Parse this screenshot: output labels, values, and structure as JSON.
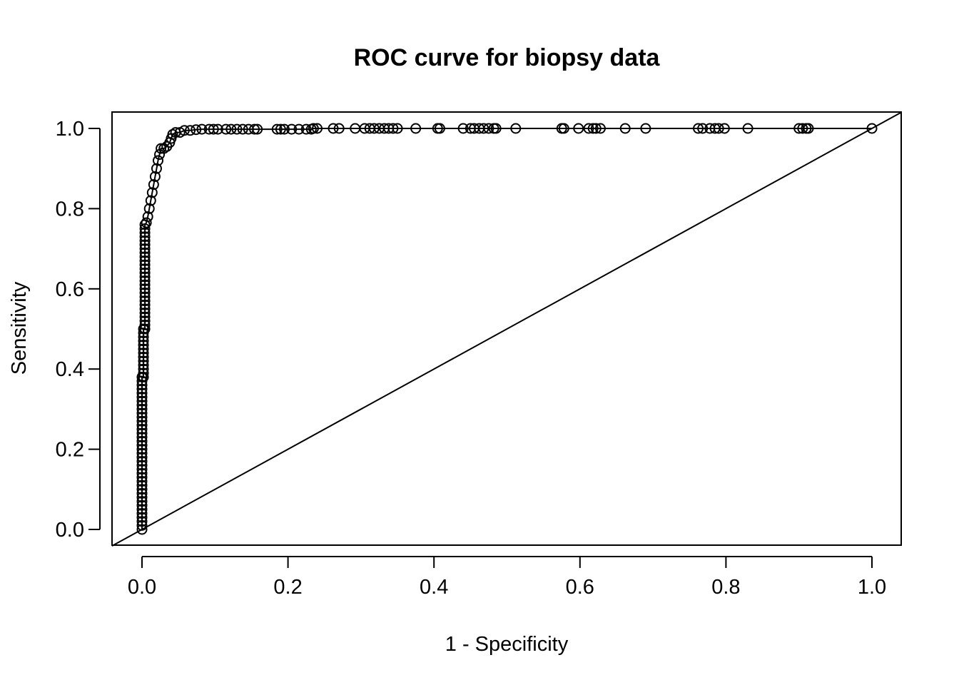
{
  "chart_data": {
    "type": "line",
    "title": "ROC curve for biopsy data",
    "xlabel": "1 - Specificity",
    "ylabel": "Sensitivity",
    "xlim": [
      0,
      1
    ],
    "ylim": [
      0,
      1
    ],
    "x_ticks": [
      0.0,
      0.2,
      0.4,
      0.6,
      0.8,
      1.0
    ],
    "y_ticks": [
      0.0,
      0.2,
      0.4,
      0.6,
      0.8,
      1.0
    ],
    "x_tick_labels": [
      "0.0",
      "0.2",
      "0.4",
      "0.6",
      "0.8",
      "1.0"
    ],
    "y_tick_labels": [
      "0.0",
      "0.2",
      "0.4",
      "0.6",
      "0.8",
      "1.0"
    ],
    "grid": false,
    "legend": "none",
    "reference_line": {
      "x": [
        0,
        1
      ],
      "y": [
        0,
        1
      ]
    },
    "series": [
      {
        "points": [
          [
            0.0,
            0.0
          ],
          [
            0.0,
            0.01
          ],
          [
            0.0,
            0.02
          ],
          [
            0.0,
            0.03
          ],
          [
            0.0,
            0.04
          ],
          [
            0.0,
            0.05
          ],
          [
            0.0,
            0.06
          ],
          [
            0.0,
            0.07
          ],
          [
            0.0,
            0.08
          ],
          [
            0.0,
            0.09
          ],
          [
            0.0,
            0.1
          ],
          [
            0.0,
            0.11
          ],
          [
            0.0,
            0.12
          ],
          [
            0.0,
            0.13
          ],
          [
            0.0,
            0.14
          ],
          [
            0.0,
            0.15
          ],
          [
            0.0,
            0.16
          ],
          [
            0.0,
            0.17
          ],
          [
            0.0,
            0.18
          ],
          [
            0.0,
            0.19
          ],
          [
            0.0,
            0.2
          ],
          [
            0.0,
            0.21
          ],
          [
            0.0,
            0.22
          ],
          [
            0.0,
            0.23
          ],
          [
            0.0,
            0.24
          ],
          [
            0.0,
            0.25
          ],
          [
            0.0,
            0.26
          ],
          [
            0.0,
            0.27
          ],
          [
            0.0,
            0.28
          ],
          [
            0.0,
            0.29
          ],
          [
            0.0,
            0.3
          ],
          [
            0.0,
            0.31
          ],
          [
            0.0,
            0.32
          ],
          [
            0.0,
            0.33
          ],
          [
            0.0,
            0.34
          ],
          [
            0.0,
            0.35
          ],
          [
            0.0,
            0.36
          ],
          [
            0.0,
            0.37
          ],
          [
            0.0,
            0.38
          ],
          [
            0.002,
            0.38
          ],
          [
            0.002,
            0.39
          ],
          [
            0.002,
            0.4
          ],
          [
            0.002,
            0.41
          ],
          [
            0.002,
            0.42
          ],
          [
            0.002,
            0.43
          ],
          [
            0.002,
            0.44
          ],
          [
            0.002,
            0.45
          ],
          [
            0.002,
            0.46
          ],
          [
            0.002,
            0.47
          ],
          [
            0.002,
            0.48
          ],
          [
            0.002,
            0.49
          ],
          [
            0.002,
            0.5
          ],
          [
            0.004,
            0.5
          ],
          [
            0.004,
            0.51
          ],
          [
            0.004,
            0.52
          ],
          [
            0.004,
            0.53
          ],
          [
            0.004,
            0.54
          ],
          [
            0.004,
            0.55
          ],
          [
            0.004,
            0.56
          ],
          [
            0.004,
            0.57
          ],
          [
            0.004,
            0.58
          ],
          [
            0.004,
            0.59
          ],
          [
            0.004,
            0.6
          ],
          [
            0.004,
            0.61
          ],
          [
            0.004,
            0.62
          ],
          [
            0.004,
            0.63
          ],
          [
            0.004,
            0.64
          ],
          [
            0.004,
            0.65
          ],
          [
            0.004,
            0.66
          ],
          [
            0.004,
            0.67
          ],
          [
            0.004,
            0.68
          ],
          [
            0.004,
            0.69
          ],
          [
            0.004,
            0.7
          ],
          [
            0.004,
            0.71
          ],
          [
            0.004,
            0.72
          ],
          [
            0.004,
            0.73
          ],
          [
            0.004,
            0.74
          ],
          [
            0.004,
            0.75
          ],
          [
            0.004,
            0.76
          ],
          [
            0.006,
            0.765
          ],
          [
            0.008,
            0.78
          ],
          [
            0.01,
            0.8
          ],
          [
            0.012,
            0.82
          ],
          [
            0.014,
            0.84
          ],
          [
            0.016,
            0.86
          ],
          [
            0.018,
            0.88
          ],
          [
            0.02,
            0.9
          ],
          [
            0.022,
            0.92
          ],
          [
            0.024,
            0.935
          ],
          [
            0.026,
            0.95
          ],
          [
            0.03,
            0.95
          ],
          [
            0.034,
            0.955
          ],
          [
            0.038,
            0.965
          ],
          [
            0.04,
            0.975
          ],
          [
            0.042,
            0.985
          ],
          [
            0.046,
            0.99
          ],
          [
            0.052,
            0.99
          ],
          [
            0.058,
            0.995
          ],
          [
            0.066,
            0.995
          ],
          [
            0.074,
            0.997
          ],
          [
            0.082,
            0.998
          ],
          [
            0.092,
            0.998
          ],
          [
            0.098,
            0.998
          ],
          [
            0.104,
            0.998
          ],
          [
            0.115,
            0.998
          ],
          [
            0.122,
            0.998
          ],
          [
            0.13,
            0.998
          ],
          [
            0.138,
            0.998
          ],
          [
            0.146,
            0.998
          ],
          [
            0.154,
            0.998
          ],
          [
            0.158,
            0.998
          ],
          [
            0.185,
            0.998
          ],
          [
            0.19,
            0.998
          ],
          [
            0.195,
            0.998
          ],
          [
            0.205,
            0.998
          ],
          [
            0.215,
            0.998
          ],
          [
            0.225,
            0.998
          ],
          [
            0.232,
            0.998
          ],
          [
            0.235,
            1.0
          ],
          [
            0.24,
            1.0
          ],
          [
            0.262,
            1.0
          ],
          [
            0.27,
            1.0
          ],
          [
            0.292,
            1.0
          ],
          [
            0.305,
            1.0
          ],
          [
            0.312,
            1.0
          ],
          [
            0.318,
            1.0
          ],
          [
            0.325,
            1.0
          ],
          [
            0.332,
            1.0
          ],
          [
            0.338,
            1.0
          ],
          [
            0.344,
            1.0
          ],
          [
            0.35,
            1.0
          ],
          [
            0.375,
            1.0
          ],
          [
            0.405,
            1.0
          ],
          [
            0.408,
            1.0
          ],
          [
            0.44,
            1.0
          ],
          [
            0.45,
            1.0
          ],
          [
            0.455,
            1.0
          ],
          [
            0.462,
            1.0
          ],
          [
            0.468,
            1.0
          ],
          [
            0.475,
            1.0
          ],
          [
            0.482,
            1.0
          ],
          [
            0.485,
            1.0
          ],
          [
            0.512,
            1.0
          ],
          [
            0.575,
            1.0
          ],
          [
            0.578,
            1.0
          ],
          [
            0.598,
            1.0
          ],
          [
            0.612,
            1.0
          ],
          [
            0.618,
            1.0
          ],
          [
            0.622,
            1.0
          ],
          [
            0.628,
            1.0
          ],
          [
            0.662,
            1.0
          ],
          [
            0.69,
            1.0
          ],
          [
            0.762,
            1.0
          ],
          [
            0.768,
            1.0
          ],
          [
            0.778,
            1.0
          ],
          [
            0.785,
            1.0
          ],
          [
            0.79,
            1.0
          ],
          [
            0.798,
            1.0
          ],
          [
            0.83,
            1.0
          ],
          [
            0.9,
            1.0
          ],
          [
            0.905,
            1.0
          ],
          [
            0.91,
            1.0
          ],
          [
            0.913,
            1.0
          ],
          [
            1.0,
            1.0
          ]
        ]
      }
    ]
  }
}
